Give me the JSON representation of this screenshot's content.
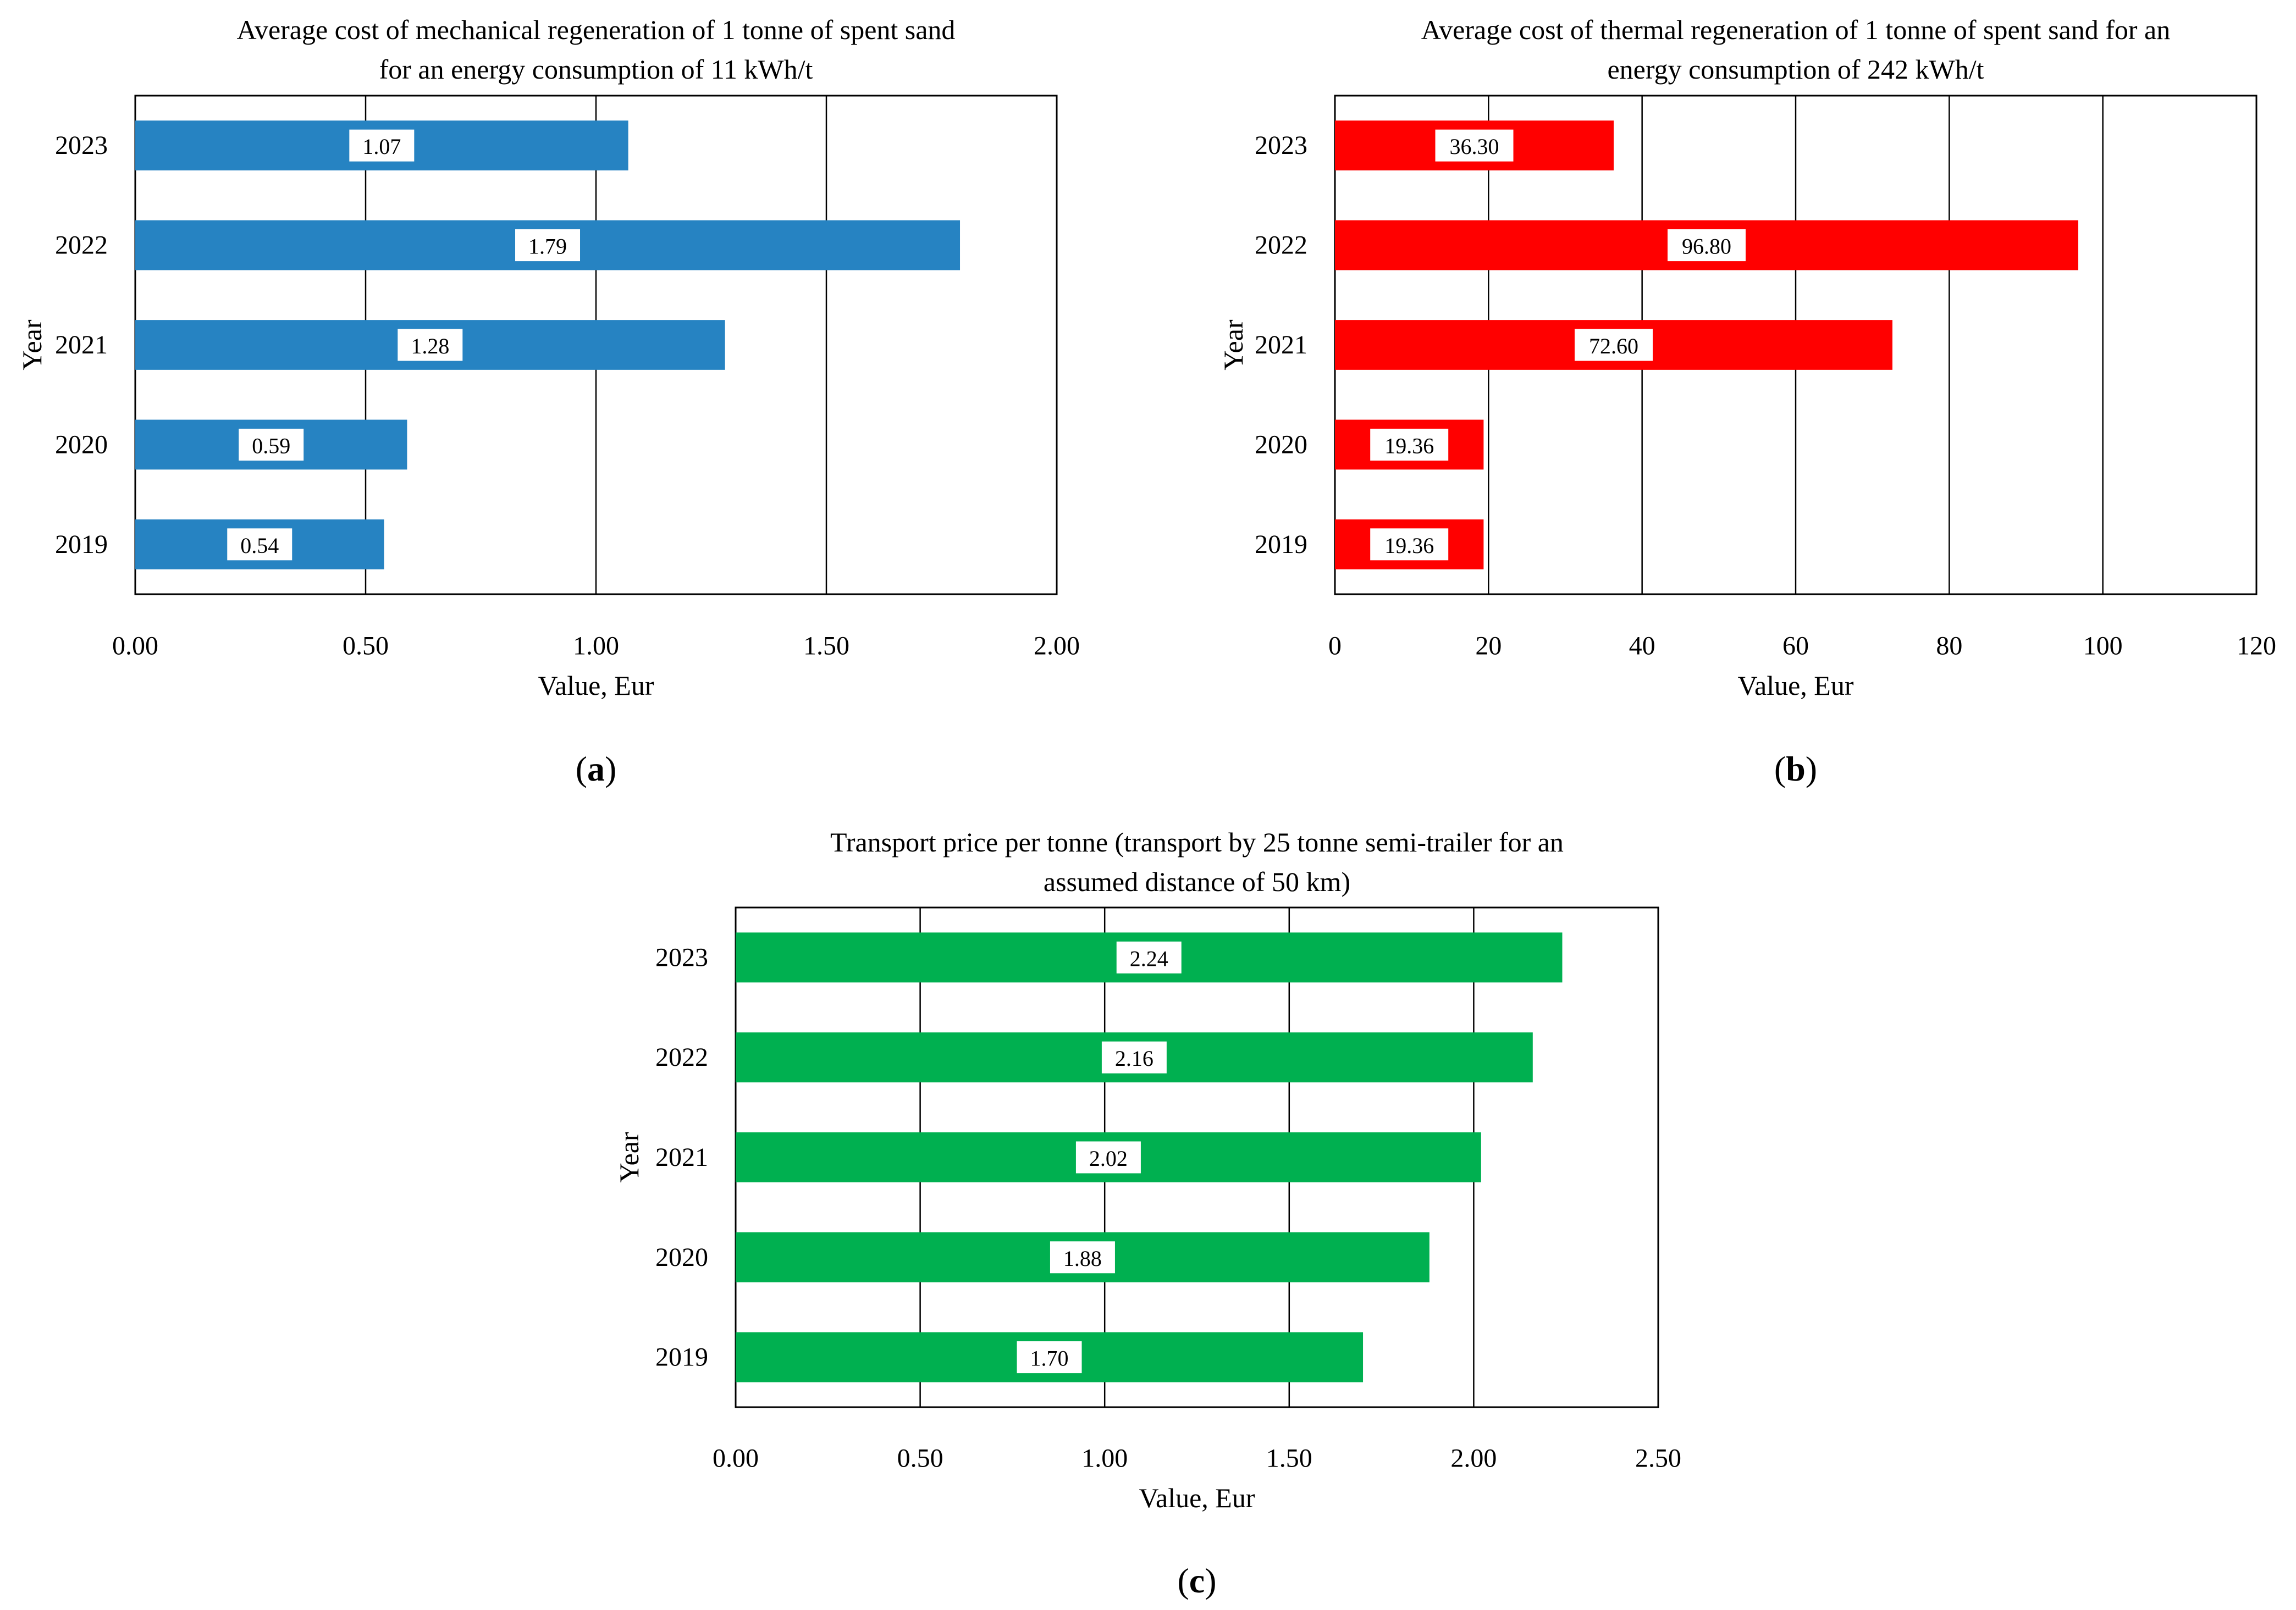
{
  "figure": {
    "panel_labels": [
      "a",
      "b",
      "c"
    ]
  },
  "chart_data": [
    {
      "type": "bar",
      "orientation": "horizontal",
      "panel": "a",
      "title_lines": [
        "Average cost of mechanical regeneration of 1 tonne of spent sand",
        "for an energy consumption of 11 kWh/t"
      ],
      "xlabel": "Value, Eur",
      "ylabel": "Year",
      "categories": [
        "2023",
        "2022",
        "2021",
        "2020",
        "2019"
      ],
      "values": [
        1.07,
        1.79,
        1.28,
        0.59,
        0.54
      ],
      "value_labels": [
        "1.07",
        "1.79",
        "1.28",
        "0.59",
        "0.54"
      ],
      "xlim": [
        0,
        2
      ],
      "xticks": [
        0,
        0.5,
        1,
        1.5,
        2
      ],
      "xtick_labels": [
        "0.00",
        "0.50",
        "1.00",
        "1.50",
        "2.00"
      ],
      "grid": "vertical",
      "color": "#2683c2"
    },
    {
      "type": "bar",
      "orientation": "horizontal",
      "panel": "b",
      "title_lines": [
        "Average cost of thermal regeneration of 1 tonne of spent sand for an",
        "energy consumption of 242 kWh/t"
      ],
      "xlabel": "Value, Eur",
      "ylabel": "Year",
      "categories": [
        "2023",
        "2022",
        "2021",
        "2020",
        "2019"
      ],
      "values": [
        36.3,
        96.8,
        72.6,
        19.36,
        19.36
      ],
      "value_labels": [
        "36.30",
        "96.80",
        "72.60",
        "19.36",
        "19.36"
      ],
      "xlim": [
        0,
        120
      ],
      "xticks": [
        0,
        20,
        40,
        60,
        80,
        100,
        120
      ],
      "xtick_labels": [
        "0",
        "20",
        "40",
        "60",
        "80",
        "100",
        "120"
      ],
      "grid": "vertical",
      "color": "#ff0000"
    },
    {
      "type": "bar",
      "orientation": "horizontal",
      "panel": "c",
      "title_lines": [
        "Transport price per tonne (transport by 25 tonne semi-trailer for an",
        "assumed distance of 50 km)"
      ],
      "xlabel": "Value, Eur",
      "ylabel": "Year",
      "categories": [
        "2023",
        "2022",
        "2021",
        "2020",
        "2019"
      ],
      "values": [
        2.24,
        2.16,
        2.02,
        1.88,
        1.7
      ],
      "value_labels": [
        "2.24",
        "2.16",
        "2.02",
        "1.88",
        "1.70"
      ],
      "xlim": [
        0,
        2.5
      ],
      "xticks": [
        0,
        0.5,
        1,
        1.5,
        2,
        2.5
      ],
      "xtick_labels": [
        "0.00",
        "0.50",
        "1.00",
        "1.50",
        "2.00",
        "2.50"
      ],
      "grid": "vertical",
      "color": "#00b050"
    }
  ]
}
